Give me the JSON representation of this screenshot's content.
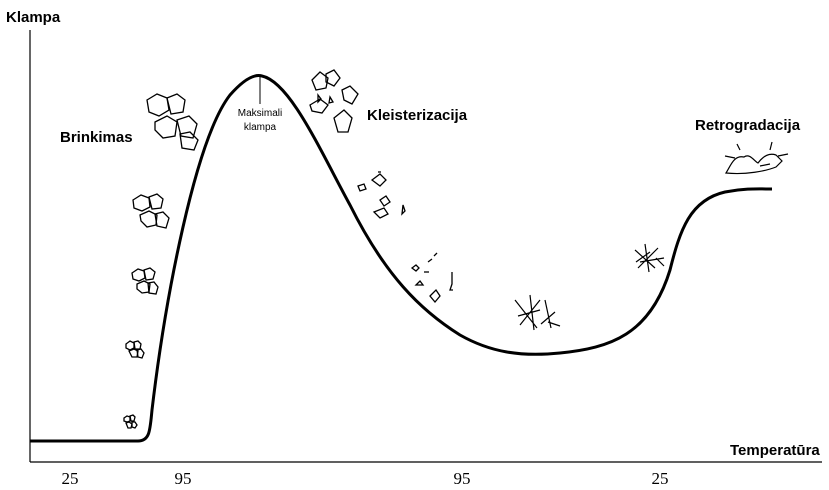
{
  "y_axis_label": "Klampa",
  "x_axis_label": "Temperatūra",
  "x_ticks": [
    "25",
    "95",
    "95",
    "25"
  ],
  "phases": [
    "Brinkimas",
    "Kleisterizacija",
    "Retrogradacija"
  ],
  "peak_label": [
    "Maksimali",
    "klampa"
  ]
}
